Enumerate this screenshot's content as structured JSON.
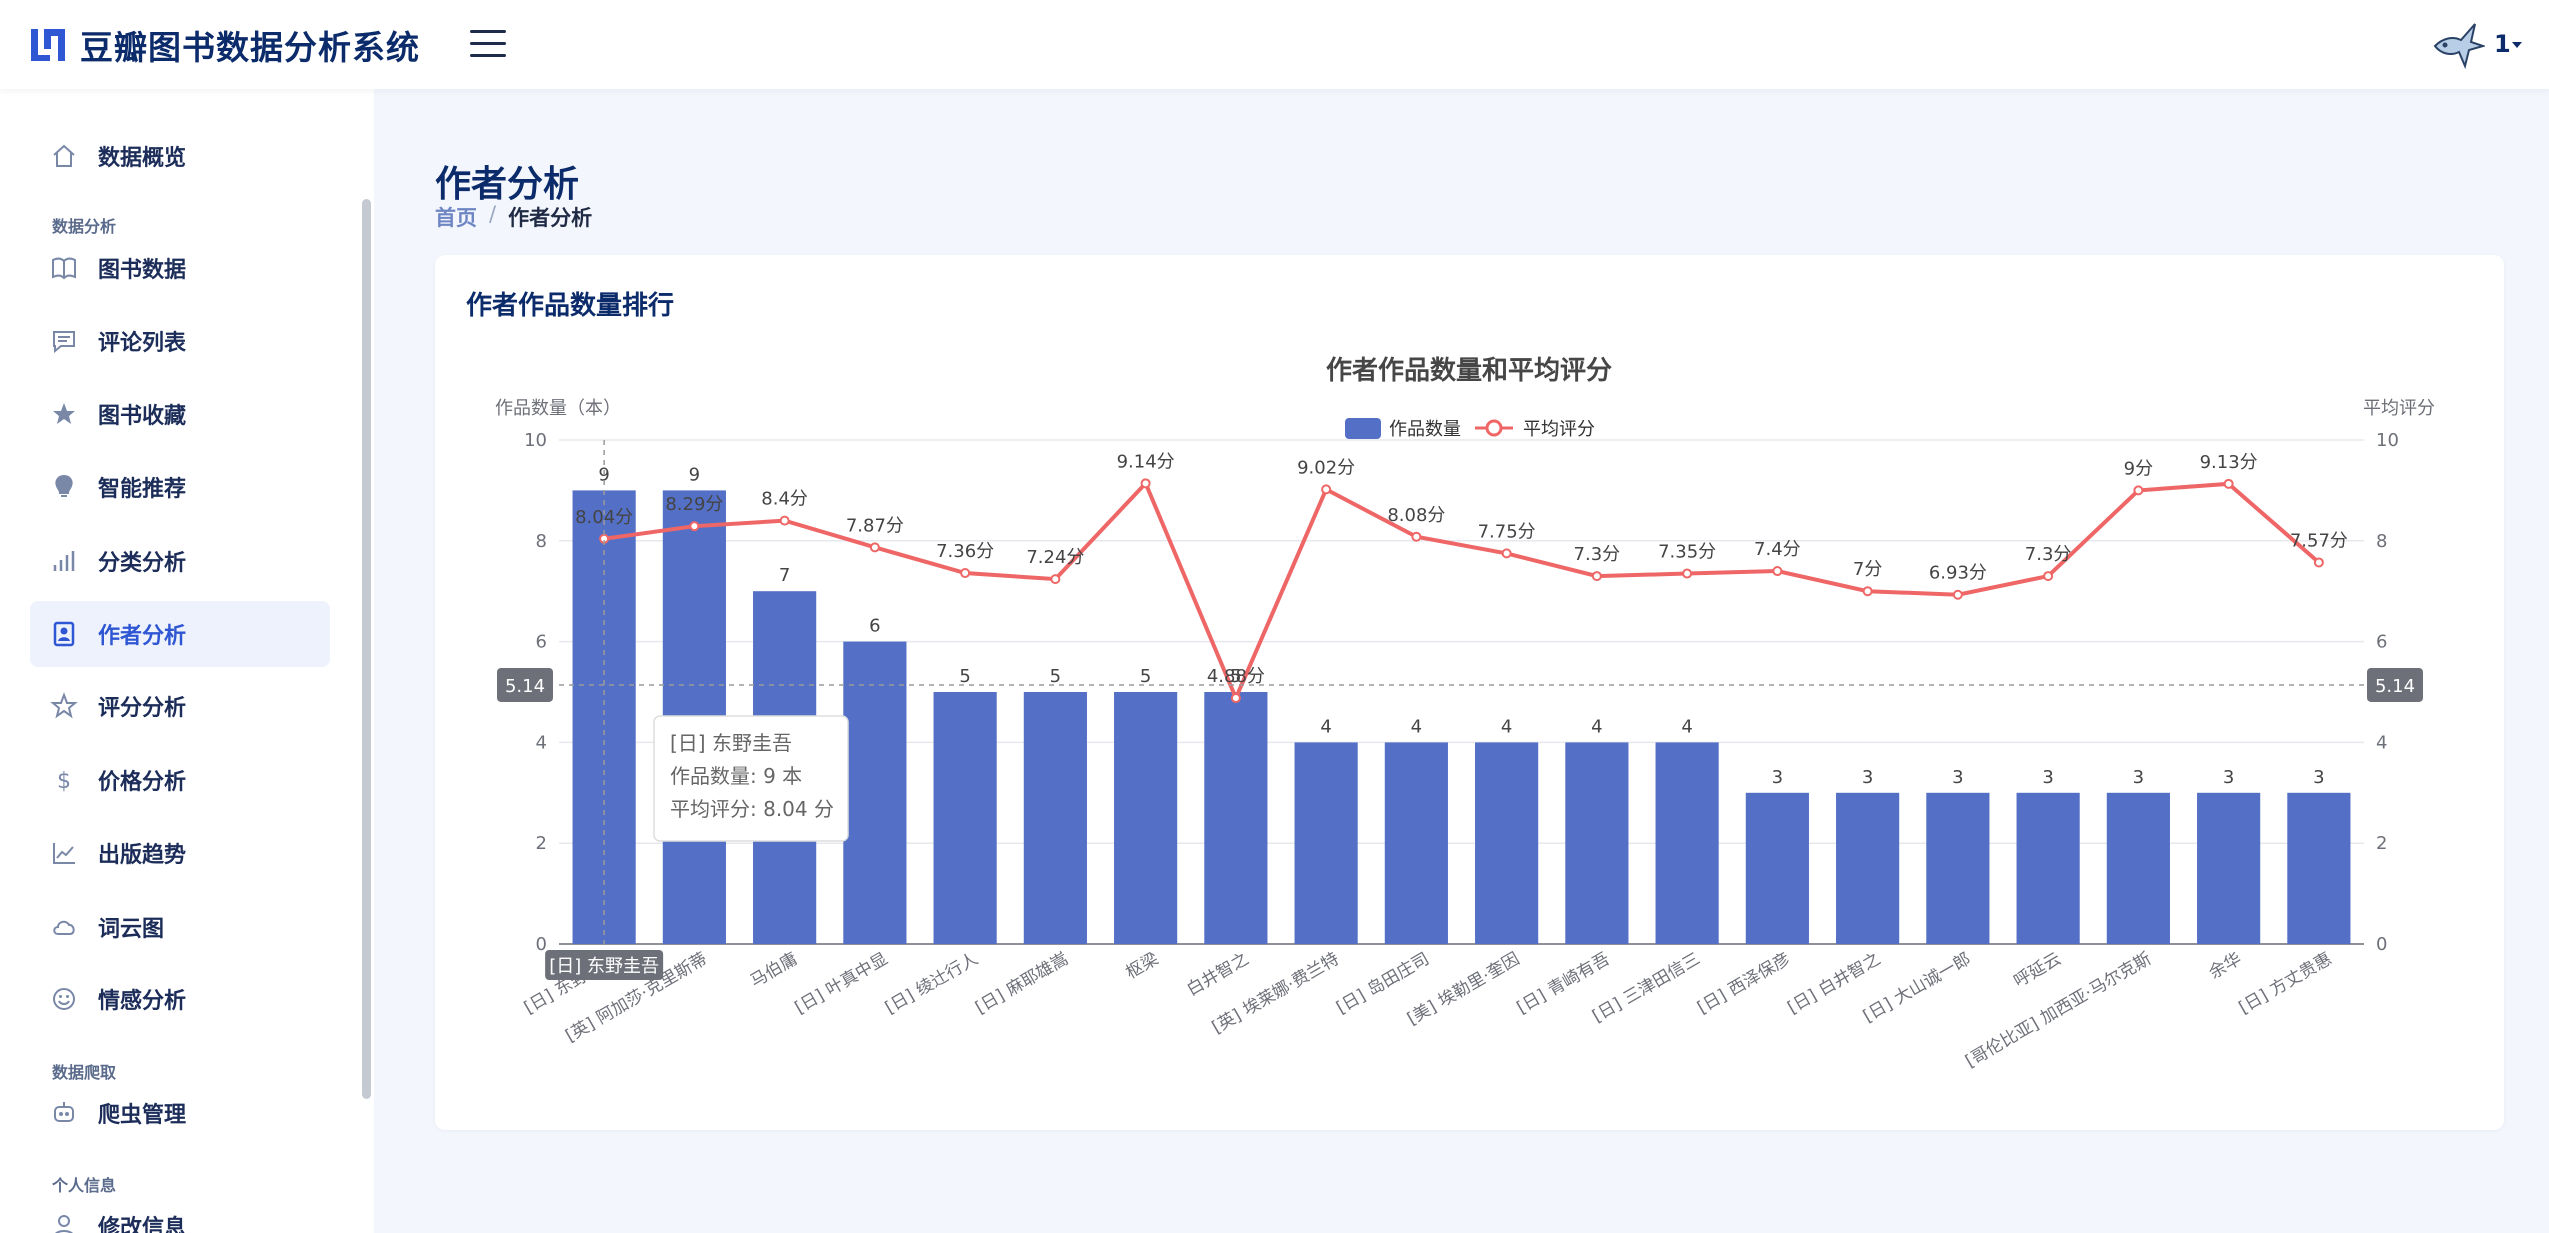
{
  "app": {
    "title": "豆瓣图书数据分析系统",
    "user": "1"
  },
  "sidebar": {
    "items": [
      {
        "label": "数据概览",
        "icon": "home-icon"
      },
      {
        "section": "数据分析"
      },
      {
        "label": "图书数据",
        "icon": "book-icon"
      },
      {
        "label": "评论列表",
        "icon": "comment-icon"
      },
      {
        "label": "图书收藏",
        "icon": "star-filled-icon"
      },
      {
        "label": "智能推荐",
        "icon": "bulb-icon"
      },
      {
        "label": "分类分析",
        "icon": "bar-chart-icon"
      },
      {
        "label": "作者分析",
        "icon": "author-badge-icon",
        "active": true
      },
      {
        "label": "评分分析",
        "icon": "star-outline-icon"
      },
      {
        "label": "价格分析",
        "icon": "dollar-icon"
      },
      {
        "label": "出版趋势",
        "icon": "line-chart-icon"
      },
      {
        "label": "词云图",
        "icon": "cloud-icon"
      },
      {
        "label": "情感分析",
        "icon": "smile-icon"
      },
      {
        "section": "数据爬取"
      },
      {
        "label": "爬虫管理",
        "icon": "robot-icon"
      },
      {
        "section": "个人信息"
      },
      {
        "label": "修改信息",
        "icon": "user-icon"
      }
    ]
  },
  "page": {
    "title": "作者分析",
    "breadcrumb": {
      "home": "首页",
      "separator": "/",
      "current": "作者分析"
    },
    "card_title": "作者作品数量排行"
  },
  "chart_data": {
    "type": "bar",
    "title": "作者作品数量和平均评分",
    "ylabel": "作品数量（本）",
    "y2label": "平均评分",
    "ylim": [
      0,
      10
    ],
    "y2lim": [
      0,
      10
    ],
    "yticks": [
      0,
      2,
      4,
      6,
      8,
      10
    ],
    "legend_position": "top-center",
    "categories": [
      "[日] 东野圭吾",
      "[英] 阿加莎·克里斯蒂",
      "马伯庸",
      "[日] 叶真中显",
      "[日] 绫辻行人",
      "[日] 麻耶雄嵩",
      "枢梁",
      "白井智之",
      "[英] 埃莱娜·费兰特",
      "[日] 岛田庄司",
      "[美] 埃勒里·奎因",
      "[日] 青崎有吾",
      "[日] 三津田信三",
      "[日] 西泽保彦",
      "[日] 白井智之",
      "[日] 大山诚一郎",
      "呼延云",
      "[哥伦比亚] 加西亚·马尔克斯",
      "余华",
      "[日] 方丈贵惠"
    ],
    "series": [
      {
        "name": "作品数量",
        "kind": "bar",
        "color": "#5470c6",
        "values": [
          9,
          9,
          7,
          6,
          5,
          5,
          5,
          5,
          4,
          4,
          4,
          4,
          4,
          3,
          3,
          3,
          3,
          3,
          3,
          3
        ]
      },
      {
        "name": "平均评分",
        "kind": "line",
        "color": "#ee6666",
        "values": [
          8.04,
          8.29,
          8.4,
          7.87,
          7.36,
          7.24,
          9.14,
          4.88,
          9.02,
          8.08,
          7.75,
          7.3,
          7.35,
          7.4,
          7.0,
          6.93,
          7.3,
          9.0,
          9.13,
          7.57
        ],
        "labels": [
          "8.04分",
          "8.29分",
          "8.4分",
          "7.87分",
          "7.36分",
          "7.24分",
          "9.14分",
          "4.88分",
          "9.02分",
          "8.08分",
          "7.75分",
          "7.3分",
          "7.35分",
          "7.4分",
          "7分",
          "6.93分",
          "7.3分",
          "9分",
          "9.13分",
          "7.57分"
        ]
      }
    ],
    "crosshair_value": "5.14",
    "axis_pointer_label": "[日] 东野圭吾",
    "tooltip": {
      "title": "[日] 东野圭吾",
      "line1": "作品数量: 9 本",
      "line2": "平均评分: 8.04 分"
    }
  }
}
